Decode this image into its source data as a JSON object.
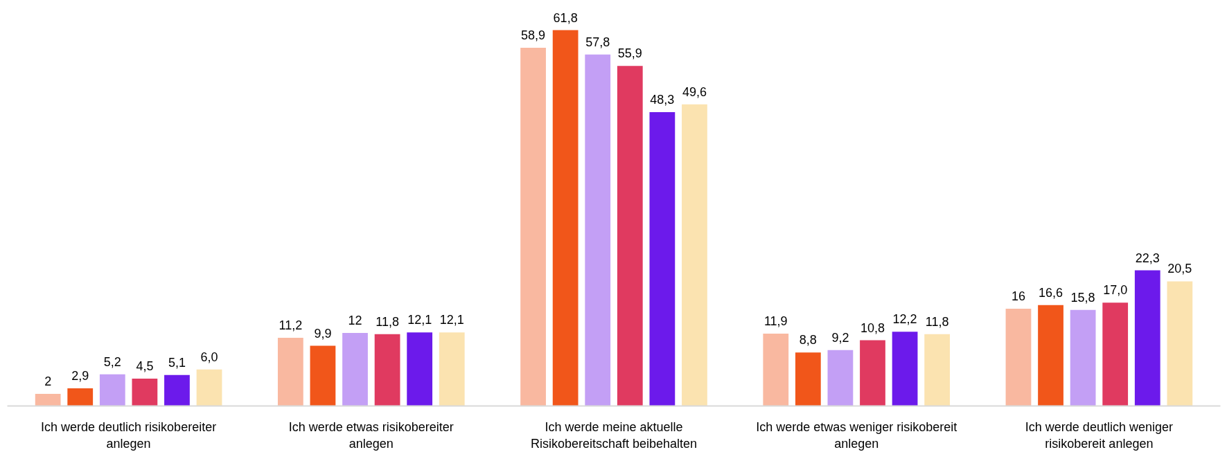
{
  "chart_data": {
    "type": "bar",
    "categories": [
      "Ich werde deutlich risikobereiter anlegen",
      "Ich werde etwas risikobereiter anlegen",
      "Ich werde meine aktuelle Risikobereitschaft beibehalten",
      "Ich werde etwas weniger risikobereit anlegen",
      "Ich werde deutlich weniger risikobereit anlegen"
    ],
    "series": [
      {
        "color": "#f9b8a0",
        "values": [
          2,
          11.2,
          58.9,
          11.9,
          16
        ],
        "value_labels": [
          "2",
          "11,2",
          "58,9",
          "11,9",
          "16"
        ]
      },
      {
        "color": "#f1561a",
        "values": [
          2.9,
          9.9,
          61.8,
          8.8,
          16.6
        ],
        "value_labels": [
          "2,9",
          "9,9",
          "61,8",
          "8,8",
          "16,6"
        ]
      },
      {
        "color": "#c39ff5",
        "values": [
          5.2,
          12,
          57.8,
          9.2,
          15.8
        ],
        "value_labels": [
          "5,2",
          "12",
          "57,8",
          "9,2",
          "15,8"
        ]
      },
      {
        "color": "#e03a60",
        "values": [
          4.5,
          11.8,
          55.9,
          10.8,
          17.0
        ],
        "value_labels": [
          "4,5",
          "11,8",
          "55,9",
          "10,8",
          "17,0"
        ]
      },
      {
        "color": "#6c1aeb",
        "values": [
          5.1,
          12.1,
          48.3,
          12.2,
          22.3
        ],
        "value_labels": [
          "5,1",
          "12,1",
          "48,3",
          "12,2",
          "22,3"
        ]
      },
      {
        "color": "#fbe3b0",
        "values": [
          6.0,
          12.1,
          49.6,
          11.8,
          20.5
        ],
        "value_labels": [
          "6,0",
          "12,1",
          "49,6",
          "11,8",
          "20,5"
        ]
      }
    ],
    "tick_labels": "x"
  }
}
